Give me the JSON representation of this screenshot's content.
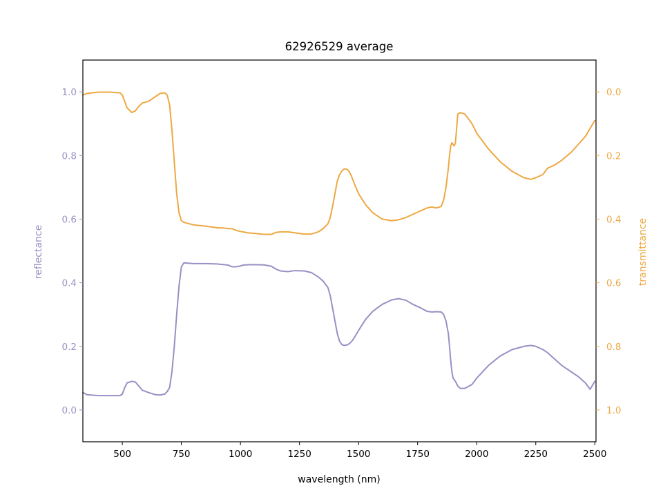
{
  "chart_data": {
    "type": "line",
    "title": "62926529 average",
    "xlabel": "wavelength (nm)",
    "ylabel_left": "reflectance",
    "ylabel_right": "transmittance",
    "xlim": [
      333,
      2505
    ],
    "ylim_left": [
      -0.1,
      1.1
    ],
    "ylim_right": [
      1.1,
      -0.1
    ],
    "x_ticks": [
      500,
      750,
      1000,
      1250,
      1500,
      1750,
      2000,
      2250,
      2500
    ],
    "y_left_ticks": [
      0.0,
      0.2,
      0.4,
      0.6,
      0.8,
      1.0
    ],
    "y_right_ticks": [
      0.0,
      0.2,
      0.4,
      0.6,
      0.8,
      1.0
    ],
    "grid": false,
    "colors": {
      "reflectance": "#9790c4",
      "transmittance": "#eda842",
      "axis": "#000000"
    },
    "series": [
      {
        "axis": "left",
        "color": "#9790c4",
        "x": [
          333,
          350,
          400,
          450,
          490,
          500,
          510,
          520,
          540,
          555,
          570,
          585,
          610,
          640,
          660,
          680,
          690,
          700,
          710,
          720,
          730,
          740,
          750,
          760,
          770,
          800,
          850,
          900,
          930,
          950,
          965,
          980,
          995,
          1010,
          1020,
          1050,
          1100,
          1130,
          1150,
          1170,
          1200,
          1230,
          1270,
          1300,
          1330,
          1350,
          1370,
          1380,
          1390,
          1400,
          1410,
          1420,
          1430,
          1440,
          1450,
          1460,
          1470,
          1480,
          1500,
          1530,
          1560,
          1600,
          1640,
          1670,
          1700,
          1730,
          1760,
          1790,
          1810,
          1830,
          1850,
          1860,
          1870,
          1880,
          1885,
          1890,
          1895,
          1900,
          1905,
          1910,
          1920,
          1930,
          1950,
          1980,
          2000,
          2050,
          2100,
          2150,
          2200,
          2230,
          2250,
          2280,
          2300,
          2330,
          2360,
          2400,
          2430,
          2460,
          2480,
          2500
        ],
        "y": [
          0.055,
          0.048,
          0.045,
          0.045,
          0.045,
          0.05,
          0.07,
          0.085,
          0.09,
          0.088,
          0.075,
          0.062,
          0.055,
          0.048,
          0.047,
          0.05,
          0.058,
          0.07,
          0.12,
          0.2,
          0.3,
          0.39,
          0.45,
          0.462,
          0.462,
          0.46,
          0.46,
          0.459,
          0.457,
          0.455,
          0.45,
          0.45,
          0.452,
          0.455,
          0.456,
          0.457,
          0.456,
          0.452,
          0.443,
          0.437,
          0.435,
          0.438,
          0.437,
          0.432,
          0.418,
          0.405,
          0.385,
          0.36,
          0.32,
          0.28,
          0.24,
          0.215,
          0.205,
          0.203,
          0.204,
          0.208,
          0.215,
          0.225,
          0.25,
          0.285,
          0.31,
          0.332,
          0.346,
          0.35,
          0.345,
          0.332,
          0.322,
          0.31,
          0.308,
          0.309,
          0.308,
          0.3,
          0.28,
          0.24,
          0.2,
          0.155,
          0.12,
          0.1,
          0.095,
          0.09,
          0.075,
          0.068,
          0.068,
          0.08,
          0.1,
          0.14,
          0.17,
          0.19,
          0.2,
          0.203,
          0.2,
          0.19,
          0.18,
          0.16,
          0.14,
          0.12,
          0.105,
          0.085,
          0.065,
          0.09
        ]
      },
      {
        "axis": "right",
        "color": "#eda842",
        "x": [
          333,
          350,
          400,
          450,
          490,
          500,
          510,
          520,
          540,
          555,
          570,
          585,
          610,
          640,
          660,
          680,
          690,
          700,
          710,
          720,
          730,
          740,
          750,
          760,
          770,
          800,
          850,
          900,
          930,
          950,
          965,
          980,
          995,
          1010,
          1030,
          1060,
          1100,
          1130,
          1150,
          1170,
          1200,
          1230,
          1270,
          1300,
          1330,
          1350,
          1370,
          1380,
          1390,
          1400,
          1410,
          1420,
          1430,
          1440,
          1450,
          1460,
          1470,
          1480,
          1500,
          1530,
          1560,
          1600,
          1640,
          1670,
          1700,
          1730,
          1760,
          1790,
          1810,
          1830,
          1850,
          1860,
          1870,
          1880,
          1885,
          1890,
          1895,
          1900,
          1905,
          1910,
          1920,
          1930,
          1950,
          1980,
          2000,
          2050,
          2100,
          2150,
          2200,
          2230,
          2250,
          2280,
          2300,
          2330,
          2360,
          2400,
          2430,
          2460,
          2480,
          2500
        ],
        "y": [
          0.01,
          0.005,
          0.001,
          0.001,
          0.003,
          0.01,
          0.03,
          0.05,
          0.065,
          0.06,
          0.045,
          0.035,
          0.03,
          0.015,
          0.005,
          0.003,
          0.01,
          0.04,
          0.12,
          0.22,
          0.32,
          0.38,
          0.405,
          0.41,
          0.412,
          0.418,
          0.422,
          0.427,
          0.428,
          0.43,
          0.43,
          0.435,
          0.438,
          0.44,
          0.443,
          0.445,
          0.448,
          0.448,
          0.442,
          0.44,
          0.44,
          0.443,
          0.447,
          0.447,
          0.44,
          0.43,
          0.415,
          0.395,
          0.36,
          0.32,
          0.28,
          0.26,
          0.248,
          0.242,
          0.243,
          0.25,
          0.265,
          0.285,
          0.32,
          0.355,
          0.38,
          0.4,
          0.405,
          0.402,
          0.395,
          0.385,
          0.375,
          0.365,
          0.362,
          0.365,
          0.36,
          0.34,
          0.3,
          0.24,
          0.2,
          0.17,
          0.16,
          0.165,
          0.17,
          0.16,
          0.07,
          0.065,
          0.07,
          0.1,
          0.13,
          0.18,
          0.22,
          0.25,
          0.27,
          0.275,
          0.27,
          0.26,
          0.24,
          0.23,
          0.215,
          0.19,
          0.165,
          0.14,
          0.115,
          0.09
        ]
      }
    ]
  }
}
